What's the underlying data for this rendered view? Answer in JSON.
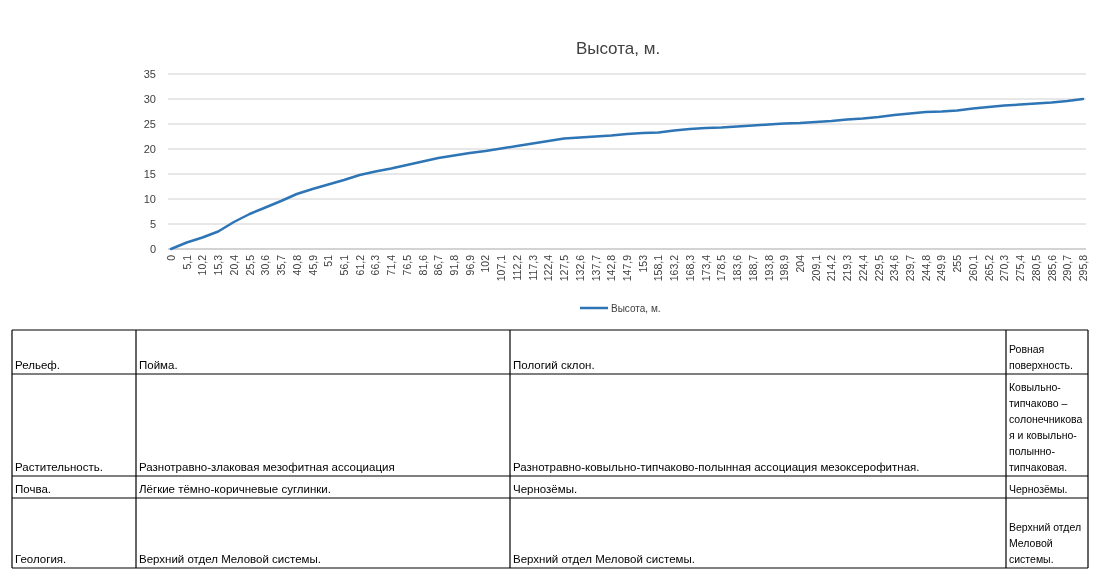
{
  "chart_data": {
    "type": "line",
    "title": "Высота, м.",
    "categories": [
      "0",
      "5,1",
      "10,2",
      "15,3",
      "20,4",
      "25,5",
      "30,6",
      "35,7",
      "40,8",
      "45,9",
      "51",
      "56,1",
      "61,2",
      "66,3",
      "71,4",
      "76,5",
      "81,6",
      "86,7",
      "91,8",
      "96,9",
      "102",
      "107,1",
      "112,2",
      "117,3",
      "122,4",
      "127,5",
      "132,6",
      "137,7",
      "142,8",
      "147,9",
      "153",
      "158,1",
      "163,2",
      "168,3",
      "173,4",
      "178,5",
      "183,6",
      "188,7",
      "193,8",
      "198,9",
      "204",
      "209,1",
      "214,2",
      "219,3",
      "224,4",
      "229,5",
      "234,6",
      "239,7",
      "244,8",
      "249,9",
      "255",
      "260,1",
      "265,2",
      "270,3",
      "275,4",
      "280,5",
      "285,6",
      "290,7",
      "295,8"
    ],
    "series": [
      {
        "name": "Высота, м.",
        "color": "#2e75b6",
        "values": [
          0,
          1.3,
          2.3,
          3.5,
          5.4,
          7.0,
          8.3,
          9.6,
          11.0,
          12.0,
          12.9,
          13.8,
          14.8,
          15.5,
          16.1,
          16.8,
          17.5,
          18.2,
          18.7,
          19.2,
          19.6,
          20.1,
          20.6,
          21.1,
          21.6,
          22.1,
          22.3,
          22.5,
          22.7,
          23.0,
          23.2,
          23.3,
          23.7,
          24.0,
          24.2,
          24.3,
          24.5,
          24.7,
          24.9,
          25.1,
          25.2,
          25.4,
          25.6,
          25.9,
          26.1,
          26.4,
          26.8,
          27.1,
          27.4,
          27.5,
          27.7,
          28.1,
          28.4,
          28.7,
          28.9,
          29.1,
          29.3,
          29.6,
          30.0
        ]
      }
    ],
    "ylim": [
      0,
      35
    ],
    "yticks": [
      0,
      5,
      10,
      15,
      20,
      25,
      30,
      35
    ],
    "grid": "y",
    "legend": "bottom",
    "marker": "none",
    "line_style": "solid",
    "annotations": [
      "Рельеф.",
      "Пойма.",
      "Пологий склон.",
      "Ровная поверхность.",
      "Растительность.",
      "Разнотравно-злаковая мезофитная ассоциация",
      "Разнотравно-ковыльно-типчаково-полынная ассоциация мезоксерофитная.",
      "Ковыльно-типчаково – солонечниковая и ковыльно-полынно-типчаковая.",
      "Почва.",
      "Лёгкие тёмно-коричневые суглинки.",
      "Чернозёмы.",
      "Чернозёмы.",
      "Геология.",
      "Верхний отдел Меловой системы.",
      "Верхний отдел Меловой системы.",
      "Верхний отдел Меловой системы."
    ]
  }
}
